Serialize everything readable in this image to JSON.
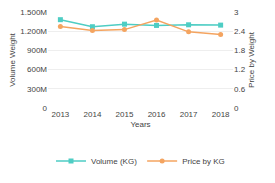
{
  "chart_data": {
    "type": "line",
    "xlabel": "Years",
    "ylabel": "Volume Weight",
    "y2label": "Price by Weight",
    "categories": [
      "2013",
      "2014",
      "2015",
      "2016",
      "2017",
      "2018"
    ],
    "series": [
      {
        "name": "Volume (KG)",
        "color": "#4ecdc4",
        "marker": "square",
        "axis": "y",
        "values": [
          1380000000,
          1270000000,
          1310000000,
          1290000000,
          1300000000,
          1295000000
        ]
      },
      {
        "name": "Price by KG",
        "color": "#f4a460",
        "marker": "circle",
        "axis": "y2",
        "values": [
          2.55,
          2.42,
          2.45,
          2.75,
          2.38,
          2.3
        ]
      }
    ],
    "ylim": [
      0,
      1500000000
    ],
    "yticks": [
      0,
      {
        "value": 300000000,
        "label": "300M"
      },
      {
        "value": 600000000,
        "label": "600M"
      },
      {
        "value": 900000000,
        "label": "900M"
      },
      {
        "value": 1200000000,
        "label": "1.200M"
      },
      {
        "value": 1500000000,
        "label": "1.500M"
      }
    ],
    "y2lim": [
      0,
      3.0
    ],
    "y2ticks": [
      0,
      0.6,
      1.2,
      1.8,
      2.4,
      3
    ],
    "grid": true,
    "legend": "bottom"
  }
}
